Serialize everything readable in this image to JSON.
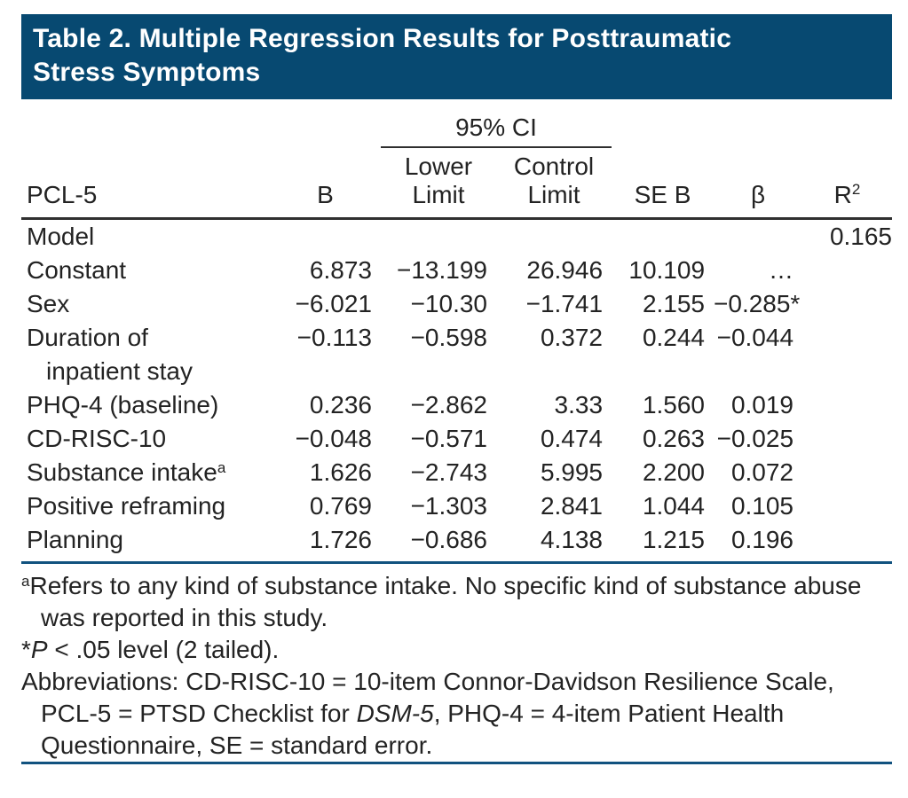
{
  "colors": {
    "band_blue": "#074971",
    "rule_blue": "#11527f",
    "header_rule_gray": "#2f2f2f",
    "title_text": "#ffffff",
    "body_text": "#232323"
  },
  "title": {
    "lines": [
      "Table 2. Multiple Regression Results for Posttraumatic",
      "Stress Symptoms"
    ]
  },
  "table": {
    "spanner": "95% CI",
    "columns": {
      "stub": "PCL-5",
      "b": "B",
      "lower": [
        "Lower",
        "Limit"
      ],
      "upper": [
        "Control",
        "Limit"
      ],
      "seb": "SE B",
      "beta": "β",
      "r2_base": "R",
      "r2_sup": "2"
    },
    "rows": [
      {
        "label": "Model",
        "b": "",
        "lower": "",
        "upper": "",
        "seb": "",
        "beta": "",
        "r2": "0.165"
      },
      {
        "label": "Constant",
        "b": "6.873",
        "lower": "−13.199",
        "upper": "26.946",
        "seb": "10.109",
        "beta": "…",
        "r2": ""
      },
      {
        "label": "Sex",
        "b": "−6.021",
        "lower": "−10.30",
        "upper": "−1.741",
        "seb": "2.155",
        "beta": "−0.285*",
        "r2": ""
      },
      {
        "label": "Duration of",
        "label2": "inpatient stay",
        "b": "−0.113",
        "lower": "−0.598",
        "upper": "0.372",
        "seb": "0.244",
        "beta": "−0.044",
        "r2": ""
      },
      {
        "label": "PHQ-4 (baseline)",
        "b": "0.236",
        "lower": "−2.862",
        "upper": "3.33",
        "seb": "1.560",
        "beta": "0.019",
        "r2": ""
      },
      {
        "label": "CD-RISC-10",
        "b": "−0.048",
        "lower": "−0.571",
        "upper": "0.474",
        "seb": "0.263",
        "beta": "−0.025",
        "r2": ""
      },
      {
        "label": "Substance intake",
        "label_sup": "a",
        "b": "1.626",
        "lower": "−2.743",
        "upper": "5.995",
        "seb": "2.200",
        "beta": "0.072",
        "r2": ""
      },
      {
        "label": "Positive reframing",
        "b": "0.769",
        "lower": "−1.303",
        "upper": "2.841",
        "seb": "1.044",
        "beta": "0.105",
        "r2": ""
      },
      {
        "label": "Planning",
        "b": "1.726",
        "lower": "−0.686",
        "upper": "4.138",
        "seb": "1.215",
        "beta": "0.196",
        "r2": ""
      }
    ]
  },
  "footnotes": [
    {
      "lines": [
        {
          "indent": false,
          "segments": [
            {
              "text": "a",
              "style": "sup"
            },
            {
              "text": "Refers to any kind of substance intake. No specific kind of substance abuse",
              "style": "normal"
            }
          ]
        },
        {
          "indent": true,
          "segments": [
            {
              "text": "was reported in this study.",
              "style": "normal"
            }
          ]
        }
      ]
    },
    {
      "lines": [
        {
          "indent": false,
          "segments": [
            {
              "text": "*",
              "style": "normal"
            },
            {
              "text": "P",
              "style": "italic"
            },
            {
              "text": " < .05 level (2 tailed).",
              "style": "normal"
            }
          ]
        }
      ]
    },
    {
      "lines": [
        {
          "indent": false,
          "segments": [
            {
              "text": "Abbreviations: CD-RISC-10 = 10-item Connor-Davidson Resilience Scale,",
              "style": "normal"
            }
          ]
        },
        {
          "indent": true,
          "segments": [
            {
              "text": "PCL-5 = PTSD Checklist for ",
              "style": "normal"
            },
            {
              "text": "DSM-5",
              "style": "italic"
            },
            {
              "text": ", PHQ-4 = 4-item Patient Health",
              "style": "normal"
            }
          ]
        },
        {
          "indent": true,
          "segments": [
            {
              "text": "Questionnaire, SE = standard error.",
              "style": "normal"
            }
          ]
        }
      ]
    }
  ]
}
